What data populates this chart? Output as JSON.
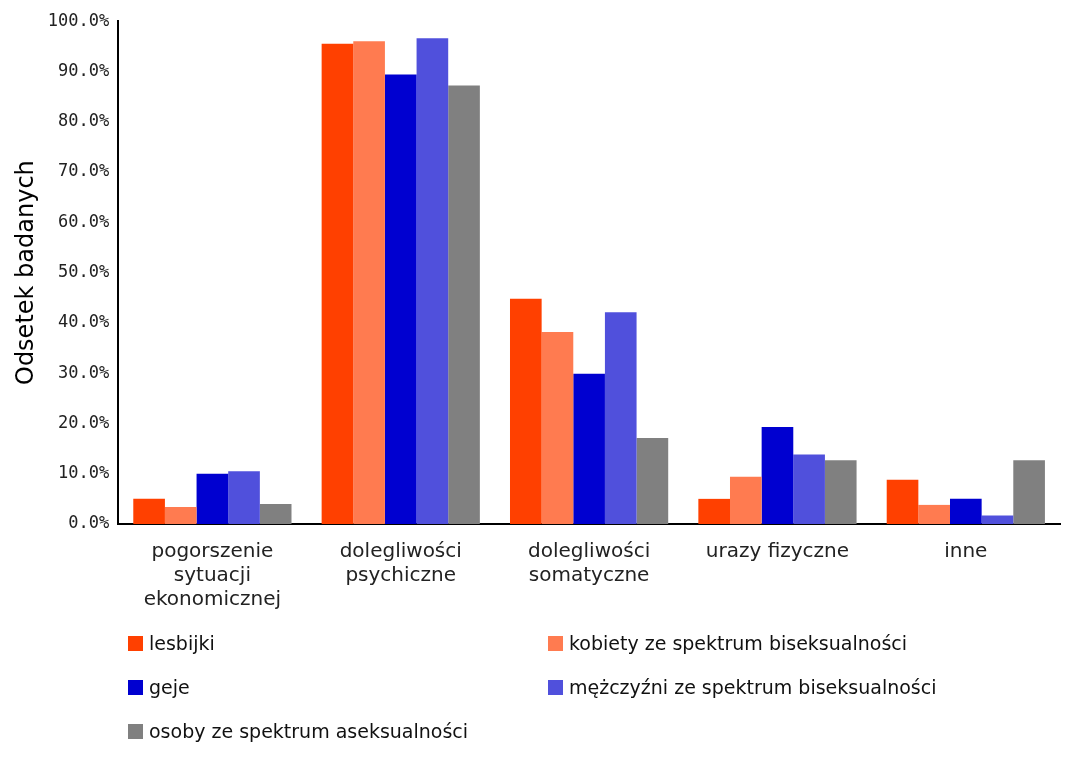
{
  "chart_data": {
    "type": "bar",
    "ylabel": "Odsetek badanych",
    "categories": [
      "pogorszenie sytuacji ekonomicznej",
      "dolegliwości psychiczne",
      "dolegliwości somatyczne",
      "urazy fizyczne",
      "inne"
    ],
    "series": [
      {
        "name": "lesbijki",
        "color": "#ff4000",
        "values": [
          5.0,
          95.5,
          44.8,
          5.0,
          8.8
        ]
      },
      {
        "name": "kobiety ze spektrum biseksualności",
        "color": "#ff7b50",
        "values": [
          3.4,
          96.0,
          38.2,
          9.4,
          3.8
        ]
      },
      {
        "name": "geje",
        "color": "#0000d0",
        "values": [
          10.0,
          89.4,
          29.9,
          19.3,
          5.0
        ]
      },
      {
        "name": "mężczyźni ze spektrum biseksualności",
        "color": "#5050dc",
        "values": [
          10.5,
          96.6,
          42.1,
          13.8,
          1.7
        ]
      },
      {
        "name": "osoby ze spektrum aseksualności",
        "color": "#808080",
        "values": [
          4.0,
          87.2,
          17.1,
          12.7,
          12.7
        ]
      }
    ],
    "ylim": [
      0,
      100
    ],
    "yticks": [
      {
        "value": 0,
        "label": "0.0%"
      },
      {
        "value": 10,
        "label": "10.0%"
      },
      {
        "value": 20,
        "label": "20.0%"
      },
      {
        "value": 30,
        "label": "30.0%"
      },
      {
        "value": 40,
        "label": "40.0%"
      },
      {
        "value": 50,
        "label": "50.0%"
      },
      {
        "value": 60,
        "label": "60.0%"
      },
      {
        "value": 70,
        "label": "70.0%"
      },
      {
        "value": 80,
        "label": "80.0%"
      },
      {
        "value": 90,
        "label": "90.0%"
      },
      {
        "value": 100,
        "label": "100.0%"
      }
    ],
    "grid": false,
    "legend": "bottom"
  }
}
